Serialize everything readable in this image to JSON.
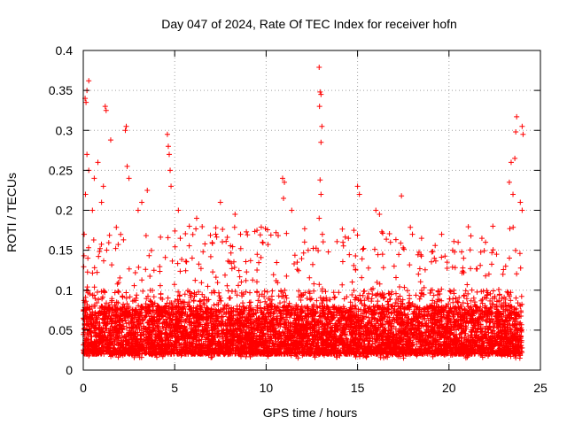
{
  "chart_data": {
    "type": "scatter",
    "title": "Day 047 of 2024, Rate Of TEC Index for receiver hofn",
    "xlabel": "GPS time / hours",
    "ylabel": "ROTI / TECUs",
    "xlim": [
      0,
      25
    ],
    "ylim": [
      0,
      0.4
    ],
    "xticks": [
      0,
      5,
      10,
      15,
      20,
      25
    ],
    "yticks": [
      0,
      0.05,
      0.1,
      0.15,
      0.2,
      0.25,
      0.3,
      0.35,
      0.4
    ],
    "xtick_labels": [
      "0",
      "5",
      "10",
      "15",
      "20",
      "25"
    ],
    "ytick_labels": [
      "0",
      "0.05",
      "0.1",
      "0.15",
      "0.2",
      "0.25",
      "0.3",
      "0.35",
      "0.4"
    ],
    "grid": true,
    "marker": "+",
    "series": [
      {
        "name": "ROTI",
        "color": "#ff0000",
        "points": [
          [
            0.1,
            0.34
          ],
          [
            0.15,
            0.335
          ],
          [
            0.2,
            0.35
          ],
          [
            0.3,
            0.362
          ],
          [
            0.12,
            0.22
          ],
          [
            0.2,
            0.27
          ],
          [
            0.3,
            0.25
          ],
          [
            0.5,
            0.2
          ],
          [
            0.8,
            0.26
          ],
          [
            1.2,
            0.33
          ],
          [
            1.25,
            0.325
          ],
          [
            1.5,
            0.288
          ],
          [
            2.3,
            0.3
          ],
          [
            2.35,
            0.305
          ],
          [
            2.4,
            0.255
          ],
          [
            2.5,
            0.24
          ],
          [
            3.5,
            0.225
          ],
          [
            4.6,
            0.295
          ],
          [
            4.65,
            0.28
          ],
          [
            4.7,
            0.27
          ],
          [
            4.75,
            0.25
          ],
          [
            4.8,
            0.23
          ],
          [
            5.2,
            0.2
          ],
          [
            7.5,
            0.21
          ],
          [
            8.3,
            0.195
          ],
          [
            10.9,
            0.24
          ],
          [
            11.0,
            0.235
          ],
          [
            10.95,
            0.215
          ],
          [
            11.4,
            0.2
          ],
          [
            12.9,
            0.379
          ],
          [
            12.95,
            0.348
          ],
          [
            13.0,
            0.345
          ],
          [
            12.92,
            0.33
          ],
          [
            13.05,
            0.305
          ],
          [
            13.0,
            0.285
          ],
          [
            12.95,
            0.238
          ],
          [
            13.0,
            0.22
          ],
          [
            12.9,
            0.19
          ],
          [
            15.0,
            0.23
          ],
          [
            15.1,
            0.22
          ],
          [
            16.0,
            0.2
          ],
          [
            16.2,
            0.195
          ],
          [
            17.4,
            0.218
          ],
          [
            19.6,
            0.17
          ],
          [
            21.2,
            0.168
          ],
          [
            23.3,
            0.235
          ],
          [
            23.4,
            0.26
          ],
          [
            23.6,
            0.265
          ],
          [
            23.7,
            0.317
          ],
          [
            23.65,
            0.298
          ],
          [
            24.0,
            0.305
          ],
          [
            24.05,
            0.295
          ],
          [
            23.5,
            0.22
          ],
          [
            23.9,
            0.21
          ],
          [
            24.0,
            0.2
          ],
          [
            22.4,
            0.18
          ],
          [
            22.0,
            0.16
          ],
          [
            21.8,
            0.165
          ],
          [
            18.0,
            0.17
          ],
          [
            18.5,
            0.165
          ],
          [
            9.8,
            0.16
          ],
          [
            9.5,
            0.175
          ],
          [
            8.6,
            0.17
          ],
          [
            6.2,
            0.19
          ],
          [
            5.8,
            0.18
          ],
          [
            3.0,
            0.2
          ],
          [
            3.2,
            0.21
          ],
          [
            1.0,
            0.21
          ],
          [
            1.1,
            0.23
          ],
          [
            0.6,
            0.24
          ],
          [
            0.05,
            0.17
          ],
          [
            0.25,
            0.14
          ],
          [
            14.2,
            0.16
          ],
          [
            14.5,
            0.165
          ],
          [
            14.8,
            0.175
          ],
          [
            12.3,
            0.15
          ],
          [
            11.7,
            0.135
          ],
          [
            20.2,
            0.15
          ],
          [
            20.5,
            0.16
          ],
          [
            20.8,
            0.14
          ],
          [
            22.6,
            0.145
          ],
          [
            23.1,
            0.13
          ],
          [
            16.8,
            0.16
          ],
          [
            17.0,
            0.13
          ],
          [
            19.2,
            0.14
          ],
          [
            19.9,
            0.135
          ]
        ],
        "background_band": {
          "x_range": [
            0,
            24
          ],
          "dense_y_range": [
            0.015,
            0.1
          ],
          "sparse_y_max": 0.18,
          "point_count": 7000,
          "seed": 47
        }
      }
    ]
  }
}
